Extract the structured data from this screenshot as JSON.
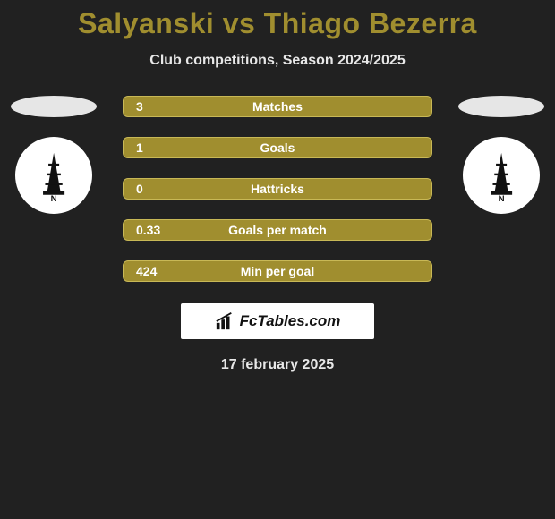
{
  "background_color": "#212121",
  "title": {
    "text": "Salyanski vs Thiago Bezerra",
    "color": "#a08e2f",
    "fontsize": 32
  },
  "subtitle": {
    "text": "Club competitions, Season 2024/2025",
    "color": "#e8e8e8",
    "fontsize": 16
  },
  "bars": {
    "fill_color": "#a08e2f",
    "border_color": "#c8b856",
    "text_color": "#ffffff",
    "height": 24,
    "border_radius": 6,
    "items": [
      {
        "value": "3",
        "label": "Matches"
      },
      {
        "value": "1",
        "label": "Goals"
      },
      {
        "value": "0",
        "label": "Hattricks"
      },
      {
        "value": "0.33",
        "label": "Goals per match"
      },
      {
        "value": "424",
        "label": "Min per goal"
      }
    ]
  },
  "left": {
    "flag_color": "#e6e6e6",
    "club_bg": "#ffffff",
    "club_fg": "#111111"
  },
  "right": {
    "flag_color": "#e6e6e6",
    "club_bg": "#ffffff",
    "club_fg": "#111111"
  },
  "attribution": {
    "text": "FcTables.com",
    "bg": "#ffffff",
    "fg": "#111111"
  },
  "date": {
    "text": "17 february 2025",
    "color": "#e8e8e8"
  }
}
